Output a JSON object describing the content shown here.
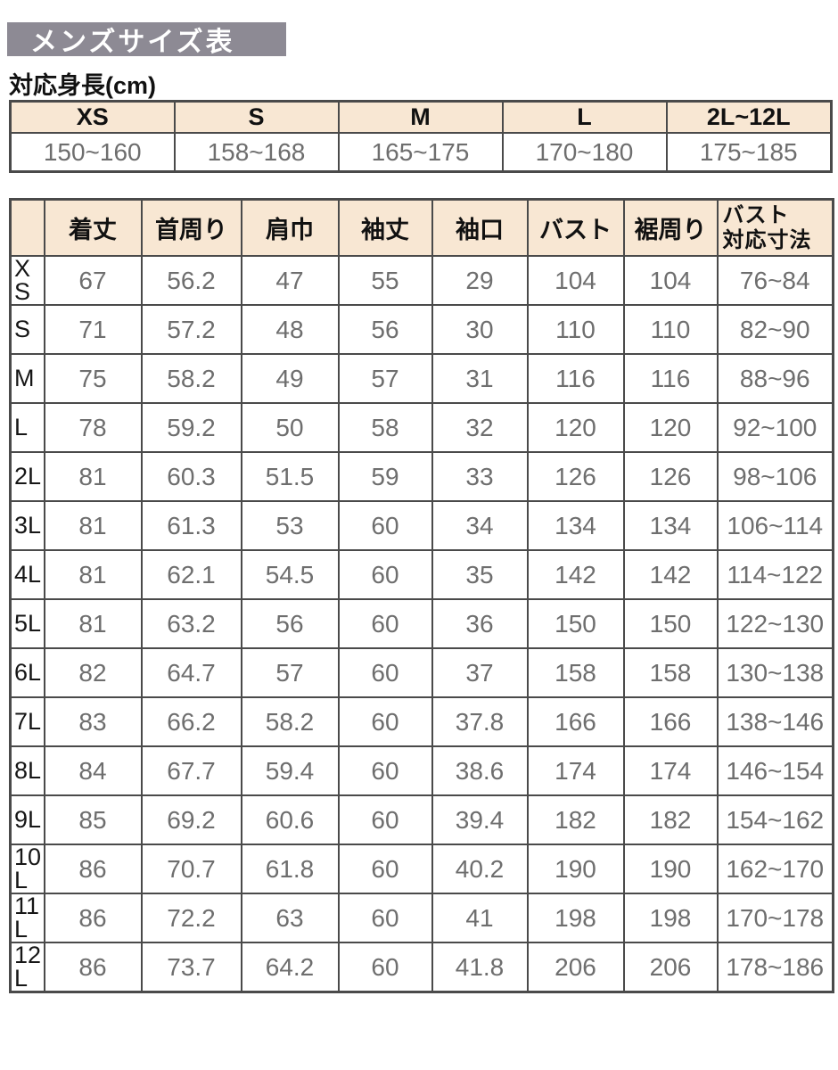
{
  "page_title": "メンズサイズ表",
  "colors": {
    "title_bar_bg": "#8D8A94",
    "title_text": "#FFFFFF",
    "table_header_bg": "#F8E7D3",
    "table_border": "#4A4A4A",
    "value_text": "#6E6E6E",
    "label_text": "#111111"
  },
  "height_section": {
    "label": "対応身長(cm)",
    "columns": [
      "XS",
      "S",
      "M",
      "L",
      "2L~12L"
    ],
    "ranges": [
      "150~160",
      "158~168",
      "165~175",
      "170~180",
      "175~185"
    ]
  },
  "size_table": {
    "columns": [
      "着丈",
      "首周り",
      "肩巾",
      "袖丈",
      "袖口",
      "バスト",
      "裾周り",
      "バスト\n対応寸法"
    ],
    "rows": [
      {
        "size": "XS",
        "values": [
          "67",
          "56.2",
          "47",
          "55",
          "29",
          "104",
          "104",
          "76~84"
        ]
      },
      {
        "size": "S",
        "values": [
          "71",
          "57.2",
          "48",
          "56",
          "30",
          "110",
          "110",
          "82~90"
        ]
      },
      {
        "size": "M",
        "values": [
          "75",
          "58.2",
          "49",
          "57",
          "31",
          "116",
          "116",
          "88~96"
        ]
      },
      {
        "size": "L",
        "values": [
          "78",
          "59.2",
          "50",
          "58",
          "32",
          "120",
          "120",
          "92~100"
        ]
      },
      {
        "size": "2L",
        "values": [
          "81",
          "60.3",
          "51.5",
          "59",
          "33",
          "126",
          "126",
          "98~106"
        ]
      },
      {
        "size": "3L",
        "values": [
          "81",
          "61.3",
          "53",
          "60",
          "34",
          "134",
          "134",
          "106~114"
        ]
      },
      {
        "size": "4L",
        "values": [
          "81",
          "62.1",
          "54.5",
          "60",
          "35",
          "142",
          "142",
          "114~122"
        ]
      },
      {
        "size": "5L",
        "values": [
          "81",
          "63.2",
          "56",
          "60",
          "36",
          "150",
          "150",
          "122~130"
        ]
      },
      {
        "size": "6L",
        "values": [
          "82",
          "64.7",
          "57",
          "60",
          "37",
          "158",
          "158",
          "130~138"
        ]
      },
      {
        "size": "7L",
        "values": [
          "83",
          "66.2",
          "58.2",
          "60",
          "37.8",
          "166",
          "166",
          "138~146"
        ]
      },
      {
        "size": "8L",
        "values": [
          "84",
          "67.7",
          "59.4",
          "60",
          "38.6",
          "174",
          "174",
          "146~154"
        ]
      },
      {
        "size": "9L",
        "values": [
          "85",
          "69.2",
          "60.6",
          "60",
          "39.4",
          "182",
          "182",
          "154~162"
        ]
      },
      {
        "size": "10L",
        "values": [
          "86",
          "70.7",
          "61.8",
          "60",
          "40.2",
          "190",
          "190",
          "162~170"
        ]
      },
      {
        "size": "11L",
        "values": [
          "86",
          "72.2",
          "63",
          "60",
          "41",
          "198",
          "198",
          "170~178"
        ]
      },
      {
        "size": "12L",
        "values": [
          "86",
          "73.7",
          "64.2",
          "60",
          "41.8",
          "206",
          "206",
          "178~186"
        ]
      }
    ]
  }
}
